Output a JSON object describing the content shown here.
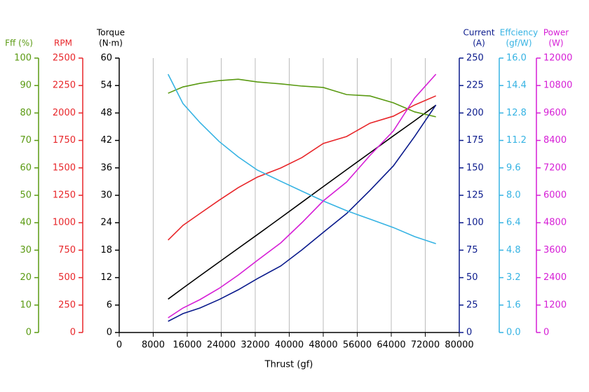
{
  "chart_data": {
    "type": "line",
    "x_label": "Thrust (gf)",
    "xlim": [
      0,
      80000
    ],
    "xticks": [
      0,
      8000,
      16000,
      24000,
      32000,
      40000,
      48000,
      56000,
      64000,
      72000,
      80000
    ],
    "grid": true,
    "x": [
      11500,
      15000,
      19000,
      23500,
      28000,
      32500,
      38000,
      43000,
      48000,
      53500,
      59000,
      64500,
      69500,
      74500
    ],
    "series": [
      {
        "axis_title": [
          "Torque",
          "(N·m)"
        ],
        "side": "left",
        "color": "#000000",
        "ylim": [
          0,
          60
        ],
        "yticks": [
          0,
          6,
          12,
          18,
          24,
          30,
          36,
          42,
          48,
          54,
          60
        ],
        "values": [
          7.3,
          9.7,
          12.4,
          15.4,
          18.4,
          21.4,
          25.1,
          28.5,
          31.9,
          35.6,
          39.3,
          43.0,
          46.3,
          49.7
        ]
      },
      {
        "axis_title": [
          "RPM"
        ],
        "side": "left",
        "color": "#e8262a",
        "ylim": [
          0,
          2500
        ],
        "yticks": [
          0,
          250,
          500,
          750,
          1000,
          1250,
          1500,
          1750,
          2000,
          2250,
          2500
        ],
        "values": [
          842,
          976,
          1084,
          1205,
          1320,
          1416,
          1499,
          1594,
          1722,
          1786,
          1907,
          1971,
          2073,
          2156
        ]
      },
      {
        "axis_title": [
          "Fff (%)"
        ],
        "side": "left",
        "color": "#5a9a12",
        "ylim": [
          0,
          100
        ],
        "yticks": [
          0,
          10,
          20,
          30,
          40,
          50,
          60,
          70,
          80,
          90,
          100
        ],
        "values": [
          87.2,
          89.5,
          90.8,
          91.8,
          92.3,
          91.3,
          90.6,
          89.8,
          89.3,
          86.7,
          86.2,
          83.7,
          80.4,
          78.6
        ]
      },
      {
        "axis_title": [
          "Current",
          "(A)"
        ],
        "side": "right",
        "color": "#0a1a8c",
        "ylim": [
          0,
          250
        ],
        "yticks": [
          0,
          25,
          50,
          75,
          100,
          125,
          150,
          175,
          200,
          225,
          250
        ],
        "values": [
          10.2,
          17.2,
          22.3,
          30.0,
          38.9,
          49.1,
          60.6,
          75.3,
          91.2,
          108.4,
          129.5,
          151.8,
          178.6,
          207.3
        ]
      },
      {
        "axis_title": [
          "Effciency",
          "(gf/W)"
        ],
        "side": "right",
        "color": "#36b3e3",
        "ylim": [
          0,
          16
        ],
        "yticks": [
          {
            "value": 0,
            "label": "0.0"
          },
          1.6,
          3.2,
          4.8,
          6.4,
          {
            "value": 8,
            "label": "8.0"
          },
          9.6,
          11.2,
          12.8,
          14.4,
          {
            "value": 16,
            "label": "16.0"
          }
        ],
        "values": [
          15.06,
          13.35,
          12.24,
          11.14,
          10.24,
          9.47,
          8.82,
          8.24,
          7.67,
          7.1,
          6.61,
          6.12,
          5.59,
          5.18
        ]
      },
      {
        "axis_title": [
          "Power",
          "(W)"
        ],
        "side": "right",
        "color": "#d61fd6",
        "ylim": [
          0,
          12000
        ],
        "yticks": [
          0,
          1200,
          2400,
          3600,
          4800,
          6000,
          7200,
          8400,
          9600,
          10800,
          12000
        ],
        "values": [
          643,
          1071,
          1439,
          1929,
          2510,
          3153,
          3918,
          4806,
          5755,
          6582,
          7745,
          8816,
          10255,
          11296
        ]
      }
    ]
  }
}
